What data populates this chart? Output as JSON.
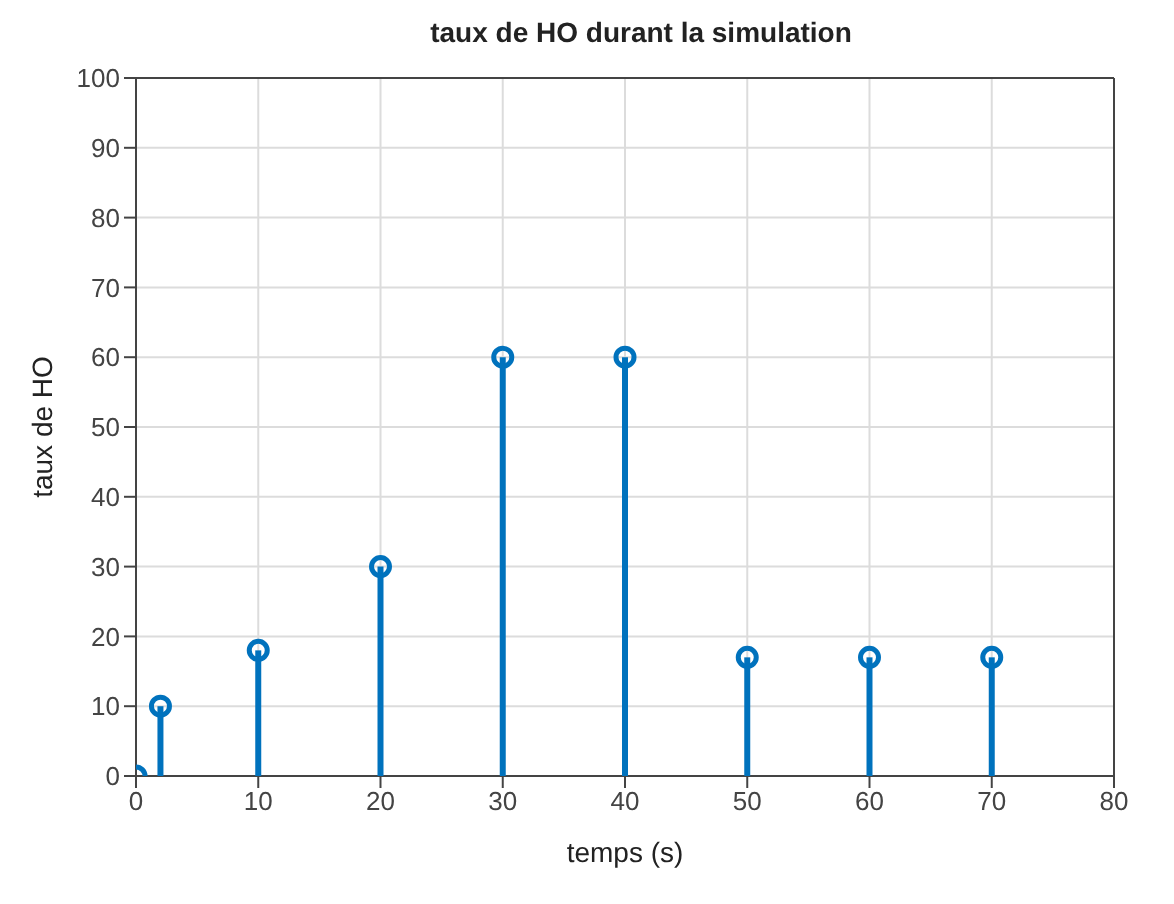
{
  "chart_data": {
    "type": "lollipop",
    "title": "taux de HO durant la simulation",
    "xlabel": "temps (s)",
    "ylabel": "taux de HO",
    "x": [
      0,
      2,
      10,
      20,
      30,
      40,
      50,
      60,
      70
    ],
    "series": [
      {
        "color": "#0072bd",
        "values": [
          0,
          10,
          18,
          30,
          60,
          60,
          17,
          17,
          17
        ]
      }
    ],
    "xlim": [
      0,
      80
    ],
    "xticks": [
      0,
      10,
      20,
      30,
      40,
      50,
      60,
      70,
      80
    ],
    "ylim": [
      0,
      100
    ],
    "yticks": [
      0,
      10,
      20,
      30,
      40,
      50,
      60,
      70,
      80,
      90,
      100
    ],
    "grid": true,
    "marker": "circle",
    "legend": false
  }
}
